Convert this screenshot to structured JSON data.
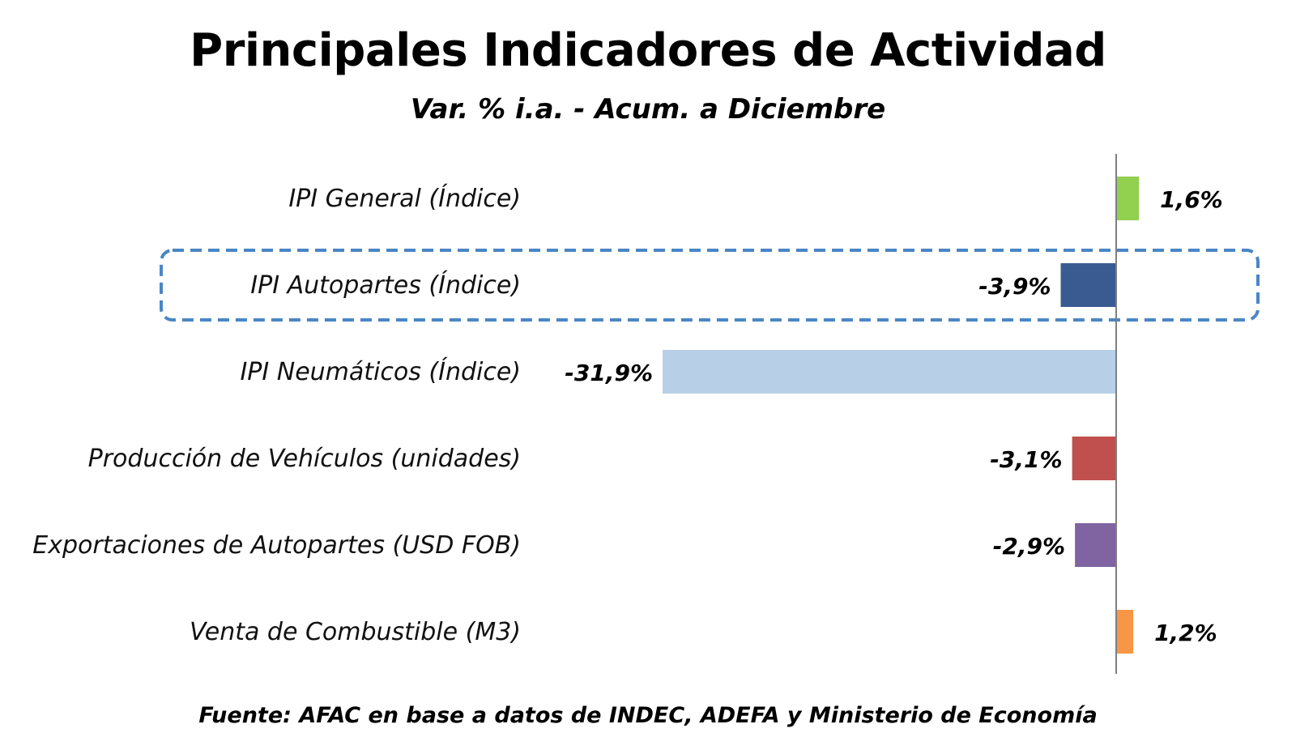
{
  "chart_data": {
    "type": "bar",
    "orientation": "horizontal",
    "title": "Principales Indicadores de Actividad",
    "subtitle": "Var. % i.a. - Acum. a Diciembre",
    "source": "Fuente: AFAC en base a datos de INDEC, ADEFA y Ministerio de Economía",
    "categories": [
      "IPI General (Índice)",
      "IPI Autopartes (Índice)",
      "IPI Neumáticos (Índice)",
      "Producción de Vehículos (unidades)",
      "Exportaciones de Autopartes (USD FOB)",
      "Venta de Combustible (M3)"
    ],
    "values": [
      1.6,
      -3.9,
      -31.9,
      -3.1,
      -2.9,
      1.2
    ],
    "value_labels": [
      "1,6%",
      "-3,9%",
      "-31,9%",
      "-3,1%",
      "-2,9%",
      "1,2%"
    ],
    "colors": [
      "#92d050",
      "#3a5a92",
      "#b8cfe8",
      "#c0504d",
      "#8064a2",
      "#f79646"
    ],
    "highlighted_category": "IPI Autopartes (Índice)",
    "xlim": [
      -31.9,
      7.5
    ],
    "xlabel": "",
    "ylabel": "",
    "grid": false,
    "legend": "none"
  }
}
